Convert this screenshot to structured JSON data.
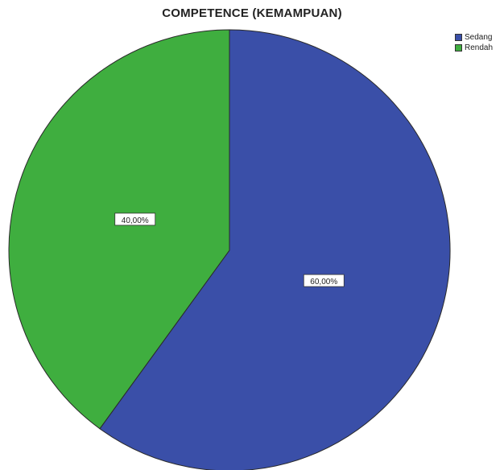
{
  "chart_data": {
    "type": "pie",
    "title": "COMPETENCE (KEMAMPUAN)",
    "categories": [
      "Sedang",
      "Rendah"
    ],
    "values": [
      60,
      40
    ],
    "data_labels": [
      "60,00%",
      "40,00%"
    ],
    "colors": [
      "#3a4fa8",
      "#3fae3f"
    ],
    "legend_position": "top-right"
  }
}
